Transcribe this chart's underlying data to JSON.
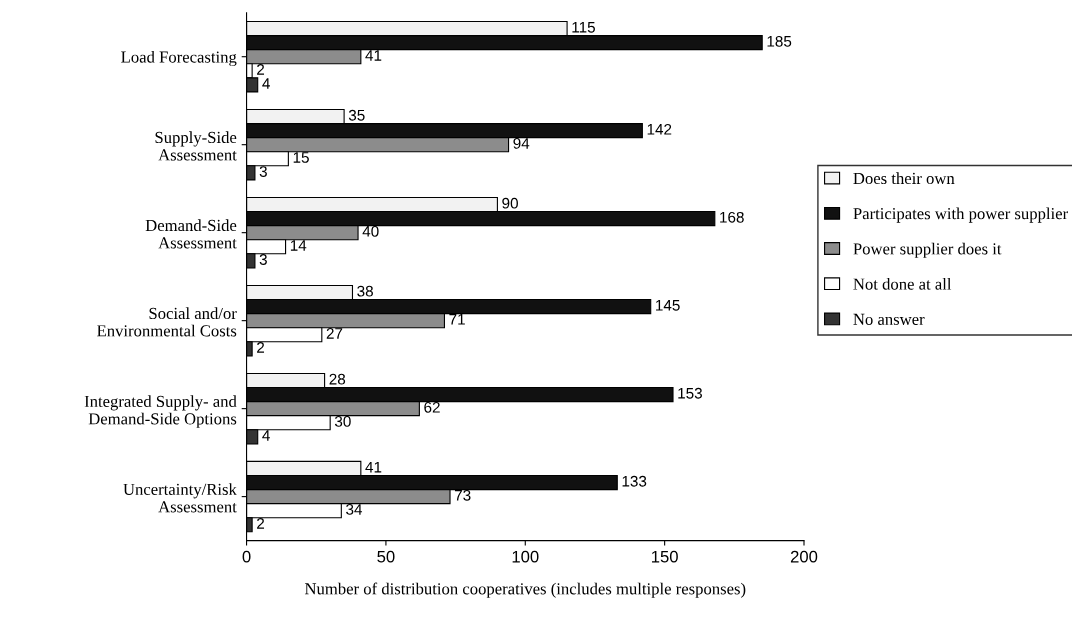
{
  "chart_data": {
    "type": "bar",
    "orientation": "horizontal",
    "xlabel": "Number of distribution cooperatives (includes multiple responses)",
    "categories": [
      "Load Forecasting",
      "Supply-Side\nAssessment",
      "Demand-Side\nAssessment",
      "Social and/or\nEnvironmental Costs",
      "Integrated Supply- and\nDemand-Side Options",
      "Uncertainty/Risk\nAssessment"
    ],
    "series": [
      {
        "name": "Does their own",
        "color": "#f2f2f2",
        "values": [
          115,
          35,
          90,
          38,
          28,
          41
        ]
      },
      {
        "name": "Participates with power supplier",
        "color": "#111111",
        "values": [
          185,
          142,
          168,
          145,
          153,
          133
        ]
      },
      {
        "name": "Power supplier does it",
        "color": "#8c8c8c",
        "values": [
          41,
          94,
          40,
          71,
          62,
          73
        ]
      },
      {
        "name": "Not done at all",
        "color": "#ffffff",
        "values": [
          2,
          15,
          14,
          27,
          30,
          34
        ]
      },
      {
        "name": "No answer",
        "color": "#333333",
        "values": [
          4,
          3,
          3,
          2,
          4,
          2
        ]
      }
    ],
    "xlim": [
      0,
      200
    ],
    "xticks": [
      0,
      50,
      100,
      150,
      200
    ],
    "data_labels": true,
    "grid": false,
    "legend": "right"
  }
}
